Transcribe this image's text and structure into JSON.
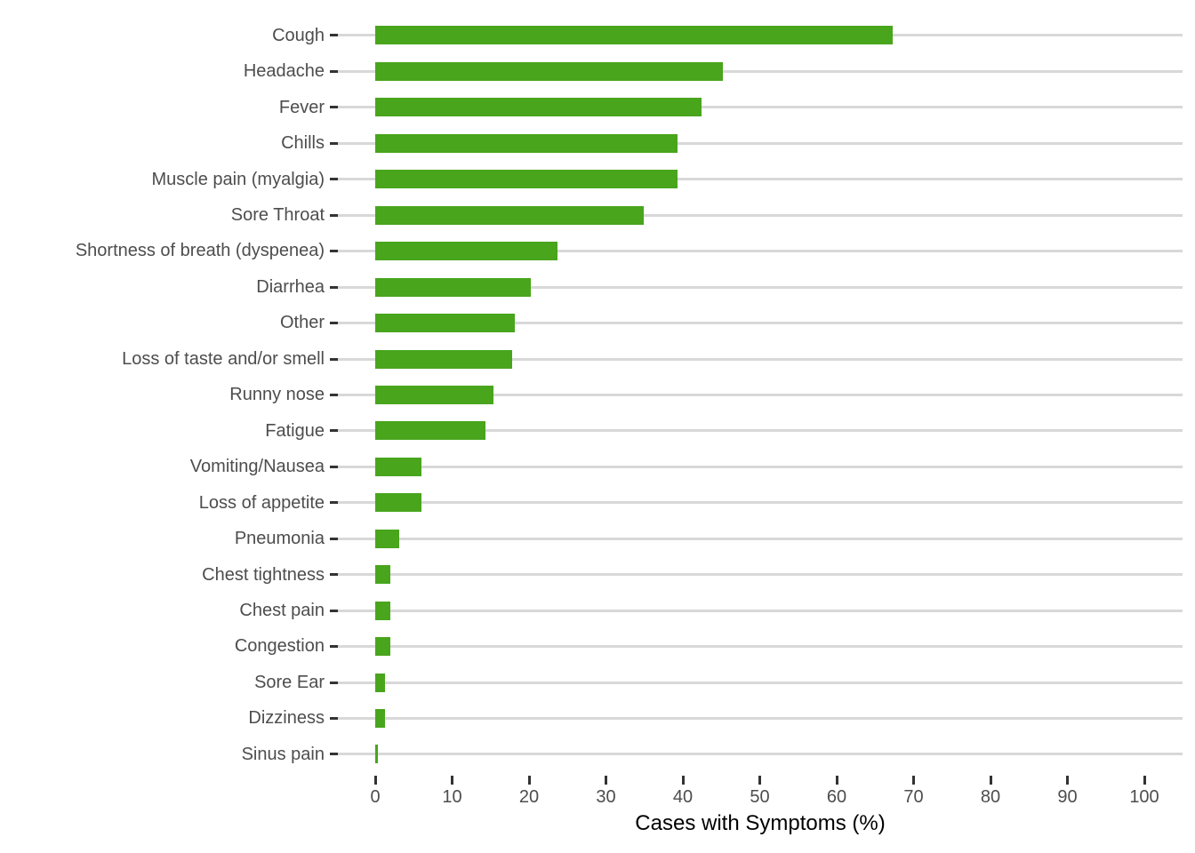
{
  "chart_data": {
    "type": "bar",
    "orientation": "horizontal",
    "title": "",
    "xlabel": "Cases with Symptoms (%)",
    "ylabel": "",
    "xlim": [
      0,
      100
    ],
    "x_ticks": [
      0,
      10,
      20,
      30,
      40,
      50,
      60,
      70,
      80,
      90,
      100
    ],
    "legend": "none",
    "grid": "horizontal category gridlines only",
    "categories": [
      "Cough",
      "Headache",
      "Fever",
      "Chills",
      "Muscle pain (myalgia)",
      "Sore Throat",
      "Shortness of breath (dyspenea)",
      "Diarrhea",
      "Other",
      "Loss of taste and/or smell",
      "Runny nose",
      "Fatigue",
      "Vomiting/Nausea",
      "Loss of appetite",
      "Pneumonia",
      "Chest tightness",
      "Chest pain",
      "Congestion",
      "Sore Ear",
      "Dizziness",
      "Sinus pain"
    ],
    "values": [
      67.3,
      45.2,
      42.4,
      39.3,
      39.3,
      34.9,
      23.7,
      20.2,
      18.2,
      17.8,
      15.4,
      14.3,
      6.0,
      6.0,
      3.1,
      2.0,
      2.0,
      2.0,
      1.3,
      1.3,
      0.4
    ]
  },
  "colors": {
    "bar_fill": "#48a51c",
    "gridline": "#d8d8d8",
    "tick_mark": "#333333",
    "axis_text": "#4d4d4d",
    "axis_title": "#000000",
    "background": "#ffffff"
  }
}
